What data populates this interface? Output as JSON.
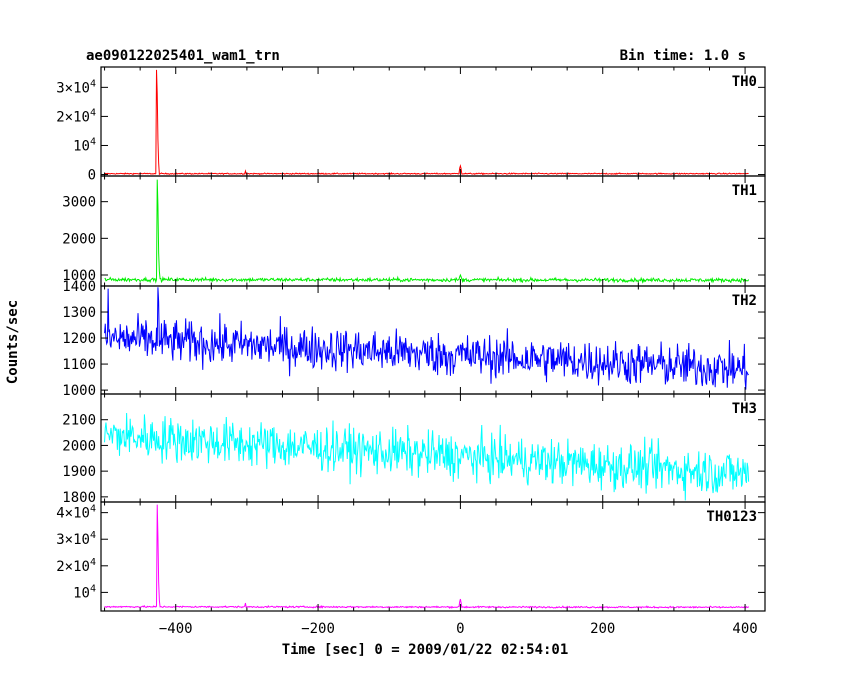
{
  "header": {
    "title": "ae090122025401_wam1_trn",
    "bin_time": "Bin time: 1.0 s"
  },
  "chart_data": {
    "type": "line",
    "title": "ae090122025401_wam1_trn",
    "subtitle": "Bin time: 1.0 s",
    "xlabel": "Time [sec] 0 = 2009/01/22 02:54:01",
    "ylabel": "Counts/sec",
    "xlim": [
      -505,
      428
    ],
    "x_ticks": [
      -400,
      -200,
      0,
      200,
      400
    ],
    "x_tick_labels": [
      "−400",
      "−200",
      "0",
      "200",
      "400"
    ],
    "data_x_range": [
      -500,
      405
    ],
    "grid": false,
    "panels": [
      {
        "name": "TH0",
        "color": "#ff0000",
        "ylim": [
          -500,
          37000
        ],
        "y_ticks": [
          0,
          10000,
          20000,
          30000
        ],
        "y_tick_labels": [
          [
            "0",
            ""
          ],
          [
            "10",
            "4"
          ],
          [
            "2×10",
            "4"
          ],
          [
            "3×10",
            "4"
          ]
        ],
        "baseline": 300,
        "noise": 100,
        "trend_end": 300,
        "spikes": [
          {
            "x": -427,
            "y": 36000
          },
          {
            "x": -426,
            "y": 28000
          },
          {
            "x": -425,
            "y": 12000
          },
          {
            "x": -424,
            "y": 4000
          },
          {
            "x": -302,
            "y": 1200
          },
          {
            "x": -1,
            "y": 2200
          },
          {
            "x": 0,
            "y": 3000
          },
          {
            "x": 1,
            "y": 2000
          }
        ]
      },
      {
        "name": "TH1",
        "color": "#00ee00",
        "ylim": [
          700,
          3700
        ],
        "y_ticks": [
          1000,
          2000,
          3000
        ],
        "y_tick_labels": [
          [
            "1000",
            ""
          ],
          [
            "2000",
            ""
          ],
          [
            "3000",
            ""
          ]
        ],
        "baseline": 875,
        "noise": 25,
        "trend_end": 860,
        "spikes": [
          {
            "x": -426,
            "y": 3600
          },
          {
            "x": -425,
            "y": 2900
          },
          {
            "x": -424,
            "y": 1600
          },
          {
            "x": -423,
            "y": 1100
          },
          {
            "x": -1,
            "y": 950
          },
          {
            "x": 0,
            "y": 1000
          },
          {
            "x": 1,
            "y": 950
          }
        ]
      },
      {
        "name": "TH2",
        "color": "#0000ff",
        "ylim": [
          985,
          1400
        ],
        "y_ticks": [
          1000,
          1100,
          1200,
          1300,
          1400
        ],
        "y_tick_labels": [
          [
            "1000",
            ""
          ],
          [
            "1100",
            ""
          ],
          [
            "1200",
            ""
          ],
          [
            "1300",
            ""
          ],
          [
            "1400",
            ""
          ]
        ],
        "baseline": 1200,
        "noise": 42,
        "trend_end": 1080,
        "spikes": [
          {
            "x": -495,
            "y": 1390
          },
          {
            "x": -425,
            "y": 1395
          },
          {
            "x": -424,
            "y": 1340
          }
        ]
      },
      {
        "name": "TH3",
        "color": "#00ffff",
        "ylim": [
          1780,
          2200
        ],
        "y_ticks": [
          1800,
          1900,
          2000,
          2100
        ],
        "y_tick_labels": [
          [
            "1800",
            ""
          ],
          [
            "1900",
            ""
          ],
          [
            "2000",
            ""
          ],
          [
            "2100",
            ""
          ]
        ],
        "baseline": 2040,
        "noise": 45,
        "trend_end": 1890,
        "spikes": []
      },
      {
        "name": "TH0123",
        "color": "#ff00ff",
        "ylim": [
          3000,
          44000
        ],
        "y_ticks": [
          10000,
          20000,
          30000,
          40000
        ],
        "y_tick_labels": [
          [
            "10",
            "4"
          ],
          [
            "2×10",
            "4"
          ],
          [
            "3×10",
            "4"
          ],
          [
            "4×10",
            "4"
          ]
        ],
        "baseline": 4600,
        "noise": 150,
        "trend_end": 4400,
        "spikes": [
          {
            "x": -426,
            "y": 43000
          },
          {
            "x": -425,
            "y": 31000
          },
          {
            "x": -424,
            "y": 14000
          },
          {
            "x": -423,
            "y": 7000
          },
          {
            "x": -302,
            "y": 6000
          },
          {
            "x": -1,
            "y": 6500
          },
          {
            "x": 0,
            "y": 7500
          },
          {
            "x": 1,
            "y": 6000
          }
        ]
      }
    ]
  }
}
